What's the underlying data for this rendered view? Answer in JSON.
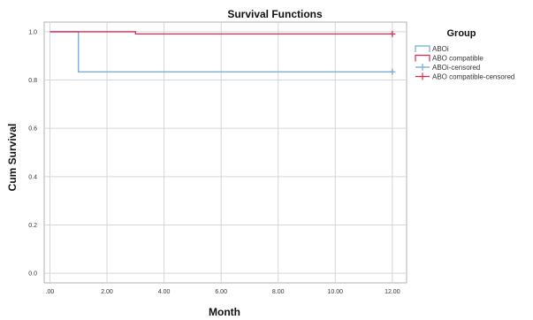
{
  "chart_data": {
    "type": "line",
    "title": "Survival Functions",
    "xlabel": "Month",
    "ylabel": "Cum Survival",
    "xlim": [
      -0.2,
      12.5
    ],
    "ylim": [
      -0.04,
      1.04
    ],
    "x_ticks": [
      0,
      2,
      4,
      6,
      8,
      10,
      12
    ],
    "x_tick_labels": [
      ".00",
      "2.00",
      "4.00",
      "6.00",
      "8.00",
      "10.00",
      "12.00"
    ],
    "y_ticks": [
      0,
      0.2,
      0.4,
      0.6,
      0.8,
      1.0
    ],
    "y_tick_labels": [
      "0.0",
      "0.2",
      "0.4",
      "0.6",
      "0.8",
      "1.0"
    ],
    "grid": true,
    "step": true,
    "legend_title": "Group",
    "legend_position": "right",
    "series": [
      {
        "name": "ABOi",
        "color": "#6fa8dc",
        "kind": "step",
        "x": [
          0,
          1,
          12
        ],
        "y": [
          1.0,
          0.834,
          0.834
        ]
      },
      {
        "name": "ABO compatible",
        "color": "#e0284f",
        "kind": "step",
        "x": [
          0,
          3,
          12
        ],
        "y": [
          1.0,
          0.991,
          0.991
        ]
      },
      {
        "name": "ABOi-censored",
        "color": "#6fa8dc",
        "kind": "censored",
        "x": [
          12
        ],
        "y": [
          0.834
        ]
      },
      {
        "name": "ABO compatible-censored",
        "color": "#e0284f",
        "kind": "censored",
        "x": [
          12
        ],
        "y": [
          0.991
        ]
      }
    ]
  }
}
